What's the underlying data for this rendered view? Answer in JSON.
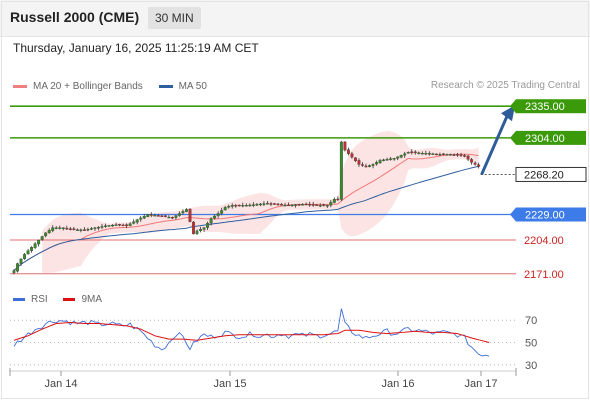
{
  "header": {
    "title": "Russell 2000 (CME)",
    "interval": "30 MIN"
  },
  "timestamp": "Thursday, January 16, 2025 11:25:19 AM CET",
  "legend": {
    "ma20_bb": "MA 20 + Bollinger Bands",
    "ma50": "MA 50",
    "rsi": "RSI",
    "rsi_ma": "9MA"
  },
  "credit": "Research © 2025 Trading Central",
  "colors": {
    "ma20": "#f07878",
    "ma50": "#2f5f9f",
    "bollinger_fill": "#fbd8d8",
    "resistance": "#3a9a0a",
    "support": "#3d7be8",
    "support_weak": "#e07070",
    "current_price": "#333333",
    "arrow": "#2d5c99",
    "candle_up": "#3a8a2a",
    "candle_down": "#c03030",
    "rsi": "#3d6ed8",
    "rsi_ma": "#dd1111"
  },
  "chart_data": {
    "type": "candlestick",
    "x_axis_labels": [
      "Jan 14",
      "Jan 15",
      "Jan 16",
      "Jan 17"
    ],
    "ylim": [
      2160,
      2345
    ],
    "levels": [
      {
        "value": 2335.0,
        "label": "2335.00",
        "kind": "resistance"
      },
      {
        "value": 2304.0,
        "label": "2304.00",
        "kind": "resistance"
      },
      {
        "value": 2268.2,
        "label": "2268.20",
        "kind": "current"
      },
      {
        "value": 2229.0,
        "label": "2229.00",
        "kind": "support"
      },
      {
        "value": 2204.0,
        "label": "2204.00",
        "kind": "support_weak"
      },
      {
        "value": 2171.0,
        "label": "2171.00",
        "kind": "support_weak"
      }
    ],
    "close_anchors": [
      [
        0,
        2174
      ],
      [
        1,
        2181
      ],
      [
        3,
        2190
      ],
      [
        5,
        2197
      ],
      [
        7,
        2204
      ],
      [
        9,
        2211
      ],
      [
        11,
        2216
      ],
      [
        14,
        2216
      ],
      [
        17,
        2214
      ],
      [
        20,
        2214
      ],
      [
        23,
        2216
      ],
      [
        26,
        2218
      ],
      [
        29,
        2219
      ],
      [
        32,
        2218
      ],
      [
        35,
        2224
      ],
      [
        38,
        2229
      ],
      [
        41,
        2228
      ],
      [
        43,
        2227
      ],
      [
        45,
        2226
      ],
      [
        47,
        2230
      ],
      [
        49,
        2234
      ],
      [
        50,
        2222
      ],
      [
        51,
        2210
      ],
      [
        52,
        2213
      ],
      [
        54,
        2216
      ],
      [
        56,
        2225
      ],
      [
        58,
        2230
      ],
      [
        60,
        2236
      ],
      [
        62,
        2238
      ],
      [
        64,
        2238
      ],
      [
        66,
        2238
      ],
      [
        69,
        2239
      ],
      [
        72,
        2240
      ],
      [
        75,
        2239
      ],
      [
        78,
        2238
      ],
      [
        81,
        2239
      ],
      [
        84,
        2239
      ],
      [
        87,
        2238
      ],
      [
        89,
        2238
      ],
      [
        91,
        2244
      ],
      [
        92,
        2244
      ],
      [
        93,
        2300
      ],
      [
        94,
        2292
      ],
      [
        96,
        2285
      ],
      [
        98,
        2278
      ],
      [
        100,
        2276
      ],
      [
        102,
        2278
      ],
      [
        104,
        2282
      ],
      [
        106,
        2283
      ],
      [
        108,
        2284
      ],
      [
        110,
        2287
      ],
      [
        112,
        2290
      ],
      [
        114,
        2290
      ],
      [
        116,
        2289
      ],
      [
        118,
        2289
      ],
      [
        120,
        2288
      ],
      [
        122,
        2288
      ],
      [
        124,
        2288
      ],
      [
        126,
        2287
      ],
      [
        128,
        2286
      ],
      [
        129,
        2283
      ],
      [
        130,
        2280
      ],
      [
        131,
        2278
      ],
      [
        132,
        2276
      ]
    ],
    "forecast": {
      "from": 2268.2,
      "to": 2335.0
    },
    "indicator": {
      "type": "line",
      "ylim": [
        20,
        80
      ],
      "ticks": [
        70,
        50,
        30
      ],
      "rsi_anchors": [
        [
          0,
          48
        ],
        [
          3,
          55
        ],
        [
          6,
          62
        ],
        [
          9,
          67
        ],
        [
          12,
          70
        ],
        [
          15,
          69
        ],
        [
          18,
          67
        ],
        [
          21,
          68
        ],
        [
          24,
          66
        ],
        [
          27,
          67
        ],
        [
          30,
          65
        ],
        [
          33,
          66
        ],
        [
          36,
          60
        ],
        [
          38,
          54
        ],
        [
          40,
          48
        ],
        [
          42,
          44
        ],
        [
          44,
          50
        ],
        [
          46,
          58
        ],
        [
          48,
          55
        ],
        [
          50,
          45
        ],
        [
          52,
          52
        ],
        [
          54,
          57
        ],
        [
          56,
          55
        ],
        [
          58,
          57
        ],
        [
          60,
          59
        ],
        [
          62,
          57
        ],
        [
          64,
          56
        ],
        [
          66,
          56
        ],
        [
          68,
          58
        ],
        [
          70,
          56
        ],
        [
          72,
          57
        ],
        [
          74,
          56
        ],
        [
          76,
          58
        ],
        [
          78,
          56
        ],
        [
          80,
          57
        ],
        [
          82,
          56
        ],
        [
          84,
          57
        ],
        [
          86,
          56
        ],
        [
          88,
          57
        ],
        [
          90,
          58
        ],
        [
          92,
          60
        ],
        [
          93,
          79
        ],
        [
          94,
          66
        ],
        [
          96,
          60
        ],
        [
          98,
          56
        ],
        [
          100,
          54
        ],
        [
          102,
          56
        ],
        [
          104,
          58
        ],
        [
          106,
          60
        ],
        [
          108,
          58
        ],
        [
          110,
          59
        ],
        [
          112,
          62
        ],
        [
          114,
          61
        ],
        [
          116,
          60
        ],
        [
          118,
          59
        ],
        [
          120,
          58
        ],
        [
          122,
          59
        ],
        [
          124,
          58
        ],
        [
          126,
          57
        ],
        [
          128,
          54
        ],
        [
          130,
          46
        ],
        [
          132,
          40
        ],
        [
          135,
          39
        ]
      ],
      "ma_anchors": [
        [
          0,
          52
        ],
        [
          4,
          56
        ],
        [
          8,
          62
        ],
        [
          12,
          67
        ],
        [
          16,
          68
        ],
        [
          20,
          67
        ],
        [
          24,
          67
        ],
        [
          28,
          66
        ],
        [
          32,
          65
        ],
        [
          36,
          62
        ],
        [
          40,
          56
        ],
        [
          44,
          53
        ],
        [
          48,
          53
        ],
        [
          52,
          52
        ],
        [
          56,
          54
        ],
        [
          60,
          56
        ],
        [
          64,
          57
        ],
        [
          68,
          57
        ],
        [
          72,
          57
        ],
        [
          76,
          57
        ],
        [
          80,
          57
        ],
        [
          84,
          57
        ],
        [
          88,
          57
        ],
        [
          92,
          58
        ],
        [
          94,
          61
        ],
        [
          98,
          61
        ],
        [
          102,
          59
        ],
        [
          106,
          58
        ],
        [
          110,
          59
        ],
        [
          114,
          60
        ],
        [
          118,
          59
        ],
        [
          122,
          59
        ],
        [
          126,
          58
        ],
        [
          130,
          54
        ],
        [
          135,
          50
        ]
      ]
    }
  }
}
